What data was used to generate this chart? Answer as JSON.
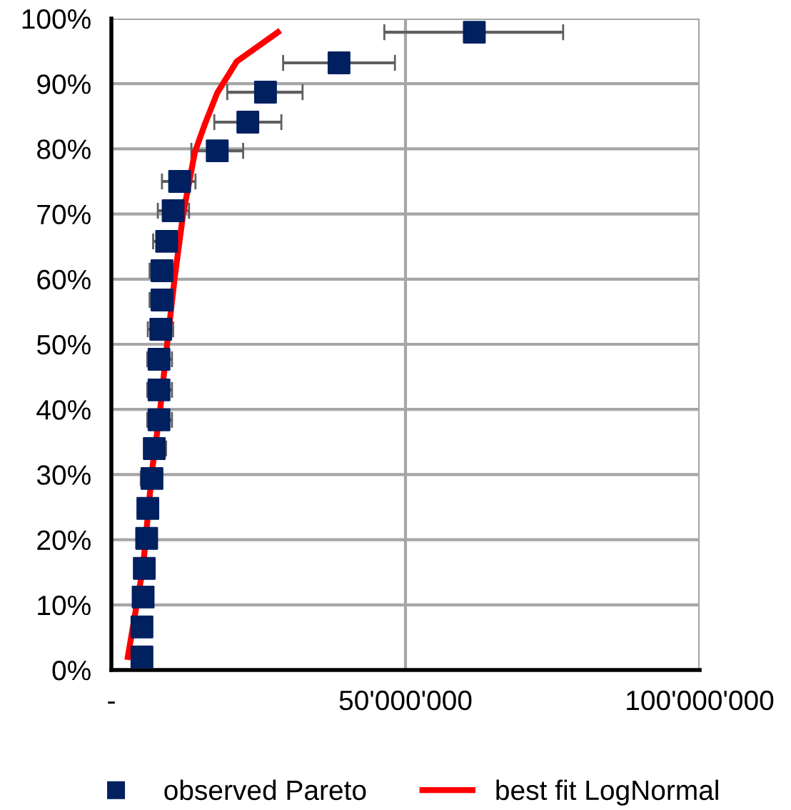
{
  "chart_data": {
    "type": "scatter",
    "xlim": [
      0,
      100000000
    ],
    "ylim": [
      0,
      100
    ],
    "xticks": [
      {
        "value": 0,
        "label": "-"
      },
      {
        "value": 50000000,
        "label": "50'000'000"
      },
      {
        "value": 100000000,
        "label": "100'000'000"
      }
    ],
    "yticks": [
      {
        "value": 0,
        "label": "0%"
      },
      {
        "value": 10,
        "label": "10%"
      },
      {
        "value": 20,
        "label": "20%"
      },
      {
        "value": 30,
        "label": "30%"
      },
      {
        "value": 40,
        "label": "40%"
      },
      {
        "value": 50,
        "label": "50%"
      },
      {
        "value": 60,
        "label": "60%"
      },
      {
        "value": 70,
        "label": "70%"
      },
      {
        "value": 80,
        "label": "80%"
      },
      {
        "value": 90,
        "label": "90%"
      },
      {
        "value": 100,
        "label": "100%"
      }
    ],
    "grid": true,
    "legend": "bottom",
    "series": [
      {
        "name": "observed Pareto",
        "marker": "square",
        "color": "#002060",
        "x": [
          61700000,
          38700000,
          26200000,
          23200000,
          18000000,
          11600000,
          10500000,
          9400000,
          8600000,
          8600000,
          8400000,
          8100000,
          8100000,
          8100000,
          7300000,
          6900000,
          6200000,
          6000000,
          5600000,
          5400000,
          5200000,
          5200000
        ],
        "values": [
          97.9,
          93.2,
          88.7,
          84.1,
          79.7,
          75.0,
          70.5,
          65.8,
          61.3,
          56.8,
          52.3,
          47.7,
          43.0,
          38.4,
          34.0,
          29.4,
          24.8,
          20.2,
          15.6,
          11.2,
          6.6,
          2.0
        ],
        "xerrors": [
          [
            46400000,
            76800000
          ],
          [
            29200000,
            48200000
          ],
          [
            19700000,
            32500000
          ],
          [
            17500000,
            28900000
          ],
          [
            13600000,
            22400000
          ],
          [
            8600000,
            14300000
          ],
          [
            7900000,
            13200000
          ],
          [
            7100000,
            10900000
          ],
          [
            6500000,
            10300000
          ],
          [
            6500000,
            10300000
          ],
          [
            6200000,
            10500000
          ],
          [
            6100000,
            10300000
          ],
          [
            6100000,
            10300000
          ],
          [
            6100000,
            10300000
          ],
          [
            5600000,
            9300000
          ],
          [
            5000000,
            8600000
          ],
          null,
          null,
          null,
          null,
          null,
          null
        ]
      },
      {
        "name": "best fit LogNormal",
        "type": "line",
        "marker": "none",
        "color": "#ff0000",
        "x": [
          2800000,
          5400000,
          6900000,
          8300000,
          9500000,
          10800000,
          12200000,
          14200000,
          15900000,
          18000000,
          21300000,
          28300000
        ],
        "values": [
          2.0,
          15.9,
          30.5,
          40.0,
          50.2,
          60.5,
          70.0,
          79.5,
          83.8,
          88.6,
          93.4,
          97.9
        ]
      }
    ]
  }
}
